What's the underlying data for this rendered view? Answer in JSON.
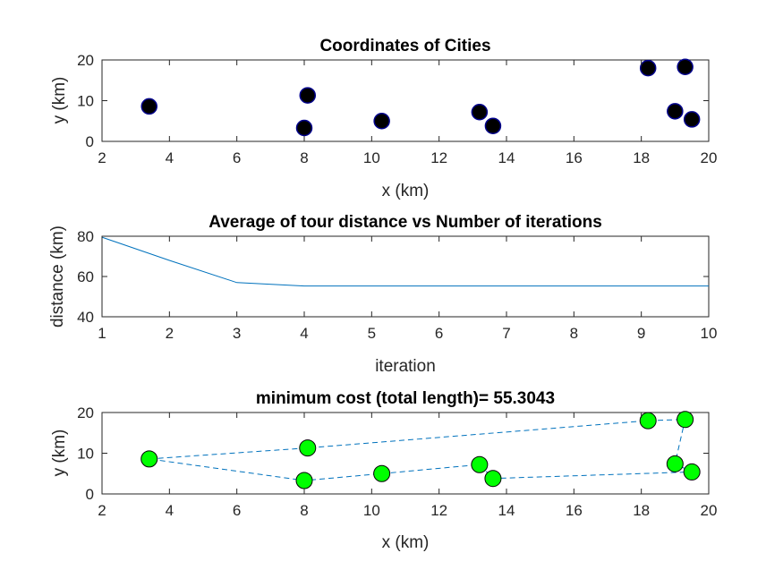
{
  "colors": {
    "axis": "#262626",
    "city_marker_fill": "#000000",
    "city_marker_edge": "#00008B",
    "convergence_line": "#0072BD",
    "tour_line": "#0072BD",
    "tour_marker_fill": "#00FF00",
    "tour_marker_edge": "#000000"
  },
  "chart_data": [
    {
      "type": "scatter",
      "title": "Coordinates of Cities",
      "xlabel": "x  (km)",
      "ylabel": "y  (km)",
      "xlim": [
        2,
        20
      ],
      "ylim": [
        0,
        20
      ],
      "xticks": [
        2,
        4,
        6,
        8,
        10,
        12,
        14,
        16,
        18,
        20
      ],
      "yticks": [
        0,
        10,
        20
      ],
      "grid": false,
      "series": [
        {
          "x": [
            3.4,
            8.0,
            8.1,
            10.3,
            13.2,
            13.6,
            18.2,
            19.3,
            19.0,
            19.5
          ],
          "y": [
            8.6,
            3.3,
            11.3,
            5.0,
            7.2,
            3.8,
            18.0,
            18.3,
            7.4,
            5.4
          ]
        }
      ]
    },
    {
      "type": "line",
      "title": "Average of tour distance vs Number of iterations",
      "xlabel": "iteration",
      "ylabel": "distance (km)",
      "xlim": [
        1,
        10
      ],
      "ylim": [
        40,
        80
      ],
      "xticks": [
        1,
        2,
        3,
        4,
        5,
        6,
        7,
        8,
        9,
        10
      ],
      "yticks": [
        40,
        60,
        80
      ],
      "grid": false,
      "series": [
        {
          "x": [
            1,
            2,
            3,
            4,
            5,
            6,
            7,
            8,
            9,
            10
          ],
          "y": [
            79.5,
            68.0,
            57.0,
            55.3,
            55.3,
            55.3,
            55.3,
            55.3,
            55.3,
            55.3
          ]
        }
      ]
    },
    {
      "type": "line",
      "title": "minimum cost (total length)= 55.3043",
      "xlabel": "x (km)",
      "ylabel": "y (km)",
      "xlim": [
        2,
        20
      ],
      "ylim": [
        0,
        20
      ],
      "xticks": [
        2,
        4,
        6,
        8,
        10,
        12,
        14,
        16,
        18,
        20
      ],
      "yticks": [
        0,
        10,
        20
      ],
      "grid": false,
      "line_style": "dashed",
      "series": [
        {
          "x": [
            3.4,
            8.1,
            18.2,
            19.3,
            19.0,
            19.5,
            13.6,
            13.2,
            10.3,
            8.0,
            3.4
          ],
          "y": [
            8.6,
            11.3,
            18.0,
            18.3,
            7.4,
            5.4,
            3.8,
            7.2,
            5.0,
            3.3,
            8.6
          ]
        }
      ]
    }
  ]
}
